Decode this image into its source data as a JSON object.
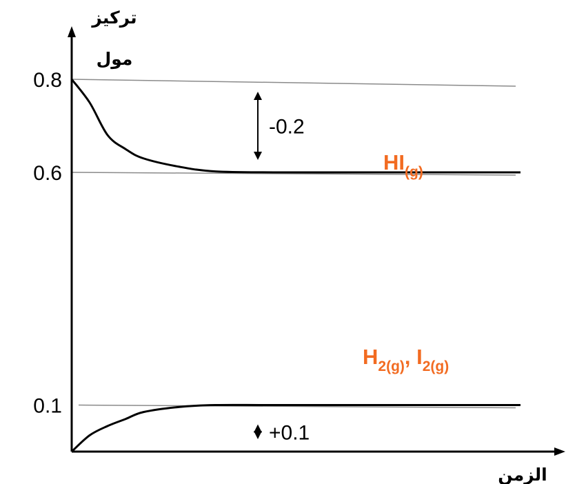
{
  "chart_data": {
    "type": "line",
    "title": "",
    "ylabel_line1": "تركيز",
    "ylabel_line2": "مول",
    "xlabel": "الزمن",
    "yticks": [
      {
        "value": 0.8,
        "label": "0.8"
      },
      {
        "value": 0.6,
        "label": "0.6"
      },
      {
        "value": 0.1,
        "label": "0.1"
      }
    ],
    "ylim": [
      0,
      0.9
    ],
    "series": [
      {
        "name": "HI(g)",
        "label_main": "HI",
        "label_sub": "(g)",
        "color": "#000000",
        "label_color": "#F26B21",
        "points": [
          [
            0,
            0.8
          ],
          [
            0.04,
            0.75
          ],
          [
            0.08,
            0.68
          ],
          [
            0.12,
            0.65
          ],
          [
            0.16,
            0.63
          ],
          [
            0.24,
            0.612
          ],
          [
            0.32,
            0.602
          ],
          [
            0.45,
            0.6
          ],
          [
            0.7,
            0.6
          ],
          [
            1.0,
            0.6
          ]
        ]
      },
      {
        "name": "H2(g), I2(g)",
        "label_parts": [
          {
            "main": "H",
            "sub": "2(g)"
          },
          {
            "main": ", I",
            "sub": "2(g)"
          }
        ],
        "color": "#000000",
        "label_color": "#F26B21",
        "points": [
          [
            0,
            0.0
          ],
          [
            0.04,
            0.035
          ],
          [
            0.08,
            0.055
          ],
          [
            0.12,
            0.07
          ],
          [
            0.16,
            0.085
          ],
          [
            0.24,
            0.096
          ],
          [
            0.32,
            0.1
          ],
          [
            0.45,
            0.1
          ],
          [
            0.7,
            0.1
          ],
          [
            1.0,
            0.1
          ]
        ]
      }
    ],
    "reference_lines": [
      0.8,
      0.6,
      0.1
    ],
    "annotations": [
      {
        "text": "-0.2",
        "from": 0.8,
        "to": 0.6,
        "x": 0.42
      },
      {
        "text": "+0.1",
        "from": 0.1,
        "to": 0.0,
        "x": 0.42
      }
    ]
  }
}
